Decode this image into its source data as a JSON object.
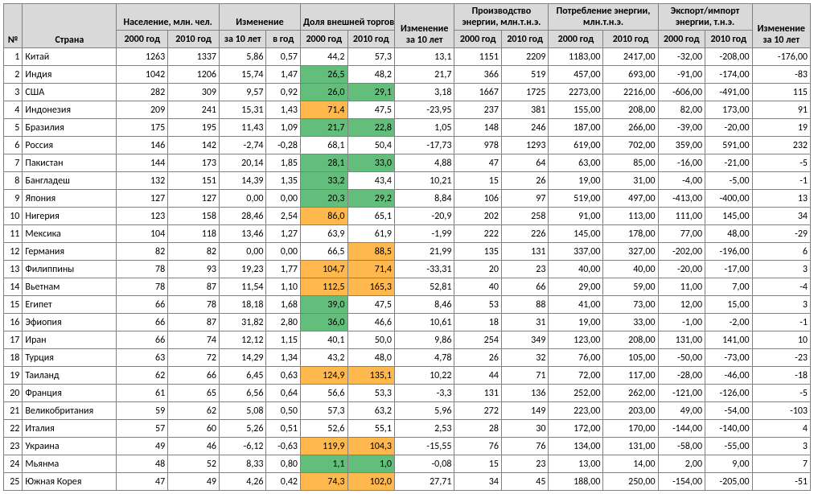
{
  "headers": {
    "num": "№",
    "country": "Страна",
    "population": "Население, млн. чел.",
    "change": "Изменение",
    "trade_share": "Доля внешней торговли, %",
    "change10": "Изменение за 10 лет",
    "energy_prod": "Производство энергии, млн.т.н.э.",
    "energy_cons": "Потребление энергии, млн.т.н.э.",
    "energy_imp": "Экспорт/импорт энергии, т.н.э.",
    "y2000": "2000 год",
    "y2010": "2010 год",
    "per10": "за 10 лет",
    "peryr": "в год"
  },
  "highlight": {
    "green_max": 40,
    "orange_min": 70
  },
  "rows": [
    {
      "n": 1,
      "country": "Китай",
      "pop2000": "1263",
      "pop2010": "1337",
      "chg10": "5,86",
      "chgyr": "0,57",
      "t2000": "44,2",
      "t2010": "57,3",
      "tchg": "13,1",
      "ep2000": "1151",
      "ep2010": "2209",
      "ec2000": "1183,00",
      "ec2010": "2417,00",
      "ei2000": "-32,00",
      "ei2010": "-208,00",
      "echg": "-176,00",
      "t2000v": 44.2,
      "t2010v": 57.3
    },
    {
      "n": 2,
      "country": "Индия",
      "pop2000": "1042",
      "pop2010": "1206",
      "chg10": "15,74",
      "chgyr": "1,47",
      "t2000": "26,5",
      "t2010": "48,2",
      "tchg": "21,7",
      "ep2000": "366",
      "ep2010": "519",
      "ec2000": "457,00",
      "ec2010": "693,00",
      "ei2000": "-91,00",
      "ei2010": "-174,00",
      "echg": "-83",
      "t2000v": 26.5,
      "t2010v": 48.2
    },
    {
      "n": 3,
      "country": "США",
      "pop2000": "282",
      "pop2010": "309",
      "chg10": "9,57",
      "chgyr": "0,92",
      "t2000": "26,0",
      "t2010": "29,1",
      "tchg": "3,18",
      "ep2000": "1667",
      "ep2010": "1725",
      "ec2000": "2273,00",
      "ec2010": "2216,00",
      "ei2000": "-606,00",
      "ei2010": "-491,00",
      "echg": "115",
      "t2000v": 26.0,
      "t2010v": 29.1
    },
    {
      "n": 4,
      "country": "Индонезия",
      "pop2000": "209",
      "pop2010": "241",
      "chg10": "15,31",
      "chgyr": "1,43",
      "t2000": "71,4",
      "t2010": "47,5",
      "tchg": "-23,95",
      "ep2000": "237",
      "ep2010": "381",
      "ec2000": "155,00",
      "ec2010": "208,00",
      "ei2000": "82,00",
      "ei2010": "173,00",
      "echg": "91",
      "t2000v": 71.4,
      "t2010v": 47.5
    },
    {
      "n": 5,
      "country": "Бразилия",
      "pop2000": "175",
      "pop2010": "195",
      "chg10": "11,43",
      "chgyr": "1,09",
      "t2000": "21,7",
      "t2010": "22,8",
      "tchg": "1,05",
      "ep2000": "148",
      "ep2010": "246",
      "ec2000": "187,00",
      "ec2010": "266,00",
      "ei2000": "-39,00",
      "ei2010": "-20,00",
      "echg": "19",
      "t2000v": 21.7,
      "t2010v": 22.8
    },
    {
      "n": 6,
      "country": "Россия",
      "pop2000": "146",
      "pop2010": "142",
      "chg10": "-2,74",
      "chgyr": "-0,28",
      "t2000": "68,1",
      "t2010": "50,4",
      "tchg": "-17,73",
      "ep2000": "978",
      "ep2010": "1293",
      "ec2000": "619,00",
      "ec2010": "702,00",
      "ei2000": "359,00",
      "ei2010": "591,00",
      "echg": "232",
      "t2000v": 68.1,
      "t2010v": 50.4
    },
    {
      "n": 7,
      "country": "Пакистан",
      "pop2000": "144",
      "pop2010": "173",
      "chg10": "20,14",
      "chgyr": "1,85",
      "t2000": "28,1",
      "t2010": "33,0",
      "tchg": "4,88",
      "ep2000": "47",
      "ep2010": "64",
      "ec2000": "63,00",
      "ec2010": "85,00",
      "ei2000": "-16,00",
      "ei2010": "-21,00",
      "echg": "-5",
      "t2000v": 28.1,
      "t2010v": 33.0
    },
    {
      "n": 8,
      "country": "Бангладеш",
      "pop2000": "132",
      "pop2010": "151",
      "chg10": "14,39",
      "chgyr": "1,35",
      "t2000": "33,2",
      "t2010": "43,4",
      "tchg": "10,21",
      "ep2000": "15",
      "ep2010": "26",
      "ec2000": "19,00",
      "ec2010": "31,00",
      "ei2000": "-4,00",
      "ei2010": "-5,00",
      "echg": "-1",
      "t2000v": 33.2,
      "t2010v": 43.4
    },
    {
      "n": 9,
      "country": "Япония",
      "pop2000": "127",
      "pop2010": "127",
      "chg10": "0,00",
      "chgyr": "0,00",
      "t2000": "20,3",
      "t2010": "29,2",
      "tchg": "8,84",
      "ep2000": "106",
      "ep2010": "97",
      "ec2000": "519,00",
      "ec2010": "497,00",
      "ei2000": "-413,00",
      "ei2010": "-400,00",
      "echg": "13",
      "t2000v": 20.3,
      "t2010v": 29.2
    },
    {
      "n": 10,
      "country": "Нигерия",
      "pop2000": "123",
      "pop2010": "158",
      "chg10": "28,46",
      "chgyr": "2,54",
      "t2000": "86,0",
      "t2010": "65,1",
      "tchg": "-20,9",
      "ep2000": "202",
      "ep2010": "258",
      "ec2000": "91,00",
      "ec2010": "113,00",
      "ei2000": "111,00",
      "ei2010": "145,00",
      "echg": "34",
      "t2000v": 86.0,
      "t2010v": 65.1
    },
    {
      "n": 11,
      "country": "Мексика",
      "pop2000": "104",
      "pop2010": "118",
      "chg10": "13,46",
      "chgyr": "1,27",
      "t2000": "63,9",
      "t2010": "61,9",
      "tchg": "-1,99",
      "ep2000": "222",
      "ep2010": "226",
      "ec2000": "145,00",
      "ec2010": "178,00",
      "ei2000": "77,00",
      "ei2010": "48,00",
      "echg": "-29",
      "t2000v": 63.9,
      "t2010v": 61.9
    },
    {
      "n": 12,
      "country": "Германия",
      "pop2000": "82",
      "pop2010": "82",
      "chg10": "0,00",
      "chgyr": "0,00",
      "t2000": "66,5",
      "t2010": "88,5",
      "tchg": "21,99",
      "ep2000": "135",
      "ep2010": "131",
      "ec2000": "337,00",
      "ec2010": "327,00",
      "ei2000": "-202,00",
      "ei2010": "-196,00",
      "echg": "6",
      "t2000v": 66.5,
      "t2010v": 88.5
    },
    {
      "n": 13,
      "country": "Филиппины",
      "pop2000": "78",
      "pop2010": "93",
      "chg10": "19,23",
      "chgyr": "1,77",
      "t2000": "104,7",
      "t2010": "71,4",
      "tchg": "-33,31",
      "ep2000": "20",
      "ep2010": "23",
      "ec2000": "40,00",
      "ec2010": "40,00",
      "ei2000": "-20,00",
      "ei2010": "-17,00",
      "echg": "3",
      "t2000v": 104.7,
      "t2010v": 71.4
    },
    {
      "n": 14,
      "country": "Вьетнам",
      "pop2000": "78",
      "pop2010": "87",
      "chg10": "11,54",
      "chgyr": "1,10",
      "t2000": "112,5",
      "t2010": "165,3",
      "tchg": "52,81",
      "ep2000": "40",
      "ep2010": "66",
      "ec2000": "29,00",
      "ec2010": "59,00",
      "ei2000": "11,00",
      "ei2010": "7,00",
      "echg": "-4",
      "t2000v": 112.5,
      "t2010v": 165.3
    },
    {
      "n": 15,
      "country": "Египет",
      "pop2000": "66",
      "pop2010": "78",
      "chg10": "18,18",
      "chgyr": "1,68",
      "t2000": "39,0",
      "t2010": "47,5",
      "tchg": "8,46",
      "ep2000": "53",
      "ep2010": "88",
      "ec2000": "41,00",
      "ec2010": "73,00",
      "ei2000": "12,00",
      "ei2010": "15,00",
      "echg": "3",
      "t2000v": 39.0,
      "t2010v": 47.5
    },
    {
      "n": 16,
      "country": "Эфиопия",
      "pop2000": "66",
      "pop2010": "87",
      "chg10": "31,82",
      "chgyr": "2,80",
      "t2000": "36,0",
      "t2010": "46,6",
      "tchg": "10,61",
      "ep2000": "18",
      "ep2010": "31",
      "ec2000": "19,00",
      "ec2010": "33,00",
      "ei2000": "-1,00",
      "ei2010": "-2,00",
      "echg": "-1",
      "t2000v": 36.0,
      "t2010v": 46.6
    },
    {
      "n": 17,
      "country": "Иран",
      "pop2000": "66",
      "pop2010": "74",
      "chg10": "12,12",
      "chgyr": "1,15",
      "t2000": "40,1",
      "t2010": "50,0",
      "tchg": "9,86",
      "ep2000": "254",
      "ep2010": "349",
      "ec2000": "123,00",
      "ec2010": "208,00",
      "ei2000": "131,00",
      "ei2010": "141,00",
      "echg": "10",
      "t2000v": 40.1,
      "t2010v": 50.0
    },
    {
      "n": 18,
      "country": "Турция",
      "pop2000": "63",
      "pop2010": "72",
      "chg10": "14,29",
      "chgyr": "1,34",
      "t2000": "43,2",
      "t2010": "48,0",
      "tchg": "4,78",
      "ep2000": "26",
      "ep2010": "32",
      "ec2000": "76,00",
      "ec2010": "105,00",
      "ei2000": "-50,00",
      "ei2010": "-73,00",
      "echg": "-23",
      "t2000v": 43.2,
      "t2010v": 48.0
    },
    {
      "n": 19,
      "country": "Таиланд",
      "pop2000": "62",
      "pop2010": "66",
      "chg10": "6,45",
      "chgyr": "0,63",
      "t2000": "124,9",
      "t2010": "135,1",
      "tchg": "10,22",
      "ep2000": "44",
      "ep2010": "71",
      "ec2000": "72,00",
      "ec2010": "117,00",
      "ei2000": "-28,00",
      "ei2010": "-46,00",
      "echg": "-18",
      "t2000v": 124.9,
      "t2010v": 135.1
    },
    {
      "n": 20,
      "country": "Франция",
      "pop2000": "61",
      "pop2010": "65",
      "chg10": "6,56",
      "chgyr": "0,64",
      "t2000": "56,6",
      "t2010": "53,3",
      "tchg": "-3,3",
      "ep2000": "131",
      "ep2010": "136",
      "ec2000": "252,00",
      "ec2010": "262,00",
      "ei2000": "-121,00",
      "ei2010": "-126,00",
      "echg": "-5",
      "t2000v": 56.6,
      "t2010v": 53.3
    },
    {
      "n": 21,
      "country": "Великобритания",
      "pop2000": "59",
      "pop2010": "62",
      "chg10": "5,08",
      "chgyr": "0,50",
      "t2000": "57,3",
      "t2010": "63,2",
      "tchg": "5,96",
      "ep2000": "272",
      "ep2010": "149",
      "ec2000": "223,00",
      "ec2010": "203,00",
      "ei2000": "49,00",
      "ei2010": "-54,00",
      "echg": "-103",
      "t2000v": 57.3,
      "t2010v": 63.2
    },
    {
      "n": 22,
      "country": "Италия",
      "pop2000": "57",
      "pop2010": "60",
      "chg10": "5,26",
      "chgyr": "0,51",
      "t2000": "52,6",
      "t2010": "55,1",
      "tchg": "2,53",
      "ep2000": "28",
      "ep2010": "30",
      "ec2000": "172,00",
      "ec2010": "170,00",
      "ei2000": "-144,00",
      "ei2010": "-140,00",
      "echg": "4",
      "t2000v": 52.6,
      "t2010v": 55.1
    },
    {
      "n": 23,
      "country": "Украина",
      "pop2000": "49",
      "pop2010": "46",
      "chg10": "-6,12",
      "chgyr": "-0,63",
      "t2000": "119,9",
      "t2010": "104,3",
      "tchg": "-15,55",
      "ep2000": "76",
      "ep2010": "76",
      "ec2000": "134,00",
      "ec2010": "131,00",
      "ei2000": "-58,00",
      "ei2010": "-55,00",
      "echg": "3",
      "t2000v": 119.9,
      "t2010v": 104.3
    },
    {
      "n": 24,
      "country": "Мьянма",
      "pop2000": "48",
      "pop2010": "52",
      "chg10": "8,33",
      "chgyr": "0,80",
      "t2000": "1,1",
      "t2010": "1,0",
      "tchg": "-0,08",
      "ep2000": "15",
      "ep2010": "23",
      "ec2000": "13,00",
      "ec2010": "14,00",
      "ei2000": "2,00",
      "ei2010": "9,00",
      "echg": "7",
      "t2000v": 1.1,
      "t2010v": 1.0
    },
    {
      "n": 25,
      "country": "Южная Корея",
      "pop2000": "47",
      "pop2010": "49",
      "chg10": "4,26",
      "chgyr": "0,42",
      "t2000": "74,3",
      "t2010": "102,0",
      "tchg": "27,71",
      "ep2000": "34",
      "ep2010": "45",
      "ec2000": "188,00",
      "ec2010": "250,00",
      "ei2000": "-154,00",
      "ei2010": "-205,00",
      "echg": "-51",
      "t2000v": 74.3,
      "t2010v": 102.0
    }
  ]
}
